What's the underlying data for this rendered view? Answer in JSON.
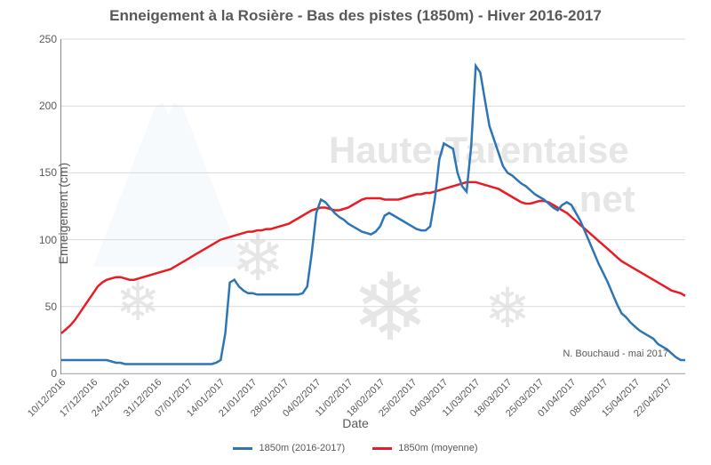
{
  "chart": {
    "type": "line",
    "title": "Enneigement à la Rosière - Bas des pistes (1850m) - Hiver 2016-2017",
    "title_fontsize": 17,
    "title_color": "#595959",
    "xlabel": "Date",
    "ylabel": "Enneigement (cm)",
    "label_fontsize": 14,
    "tick_fontsize": 12,
    "background_color": "#ffffff",
    "grid_color": "#d9d9d9",
    "axis_color": "#888888",
    "ylim": [
      0,
      250
    ],
    "ytick_step": 50,
    "yticks": [
      0,
      50,
      100,
      150,
      200,
      250
    ],
    "xticks": [
      "10/12/2016",
      "17/12/2016",
      "24/12/2016",
      "31/12/2016",
      "07/01/2017",
      "14/01/2017",
      "21/01/2017",
      "28/01/2017",
      "04/02/2017",
      "11/02/2017",
      "18/02/2017",
      "25/02/2017",
      "04/03/2017",
      "11/03/2017",
      "18/03/2017",
      "25/03/2017",
      "01/04/2017",
      "08/04/2017",
      "15/04/2017",
      "22/04/2017"
    ],
    "xtick_rotation": -45,
    "line_width": 2.5,
    "series": [
      {
        "name": "1850m (2016-2017)",
        "color": "#2e75b6",
        "t": [
          0,
          1,
          2,
          3,
          4,
          5,
          6,
          7,
          8,
          9,
          10,
          11,
          12,
          13,
          14,
          15,
          16,
          17,
          18,
          19,
          20,
          21,
          22,
          23,
          24,
          25,
          26,
          27,
          28,
          29,
          30,
          31,
          32,
          33,
          34,
          35,
          36,
          37,
          38,
          39,
          40,
          41,
          42,
          43,
          44,
          45,
          46,
          47,
          48,
          49,
          50,
          51,
          52,
          53,
          54,
          55,
          56,
          57,
          58,
          59,
          60,
          61,
          62,
          63,
          64,
          65,
          66,
          67,
          68,
          69,
          70,
          71,
          72,
          73,
          74,
          75,
          76,
          77,
          78,
          79,
          80,
          81,
          82,
          83,
          84,
          85,
          86,
          87,
          88,
          89,
          90,
          91,
          92,
          93,
          94,
          95,
          96,
          97,
          98,
          99,
          100,
          101,
          102,
          103,
          104,
          105,
          106,
          107,
          108,
          109,
          110,
          111,
          112,
          113,
          114,
          115,
          116,
          117,
          118,
          119,
          120,
          121,
          122,
          123,
          124,
          125,
          126,
          127,
          128,
          129,
          130,
          131,
          132,
          133,
          134,
          135,
          136,
          137
        ],
        "y": [
          10,
          10,
          10,
          10,
          10,
          10,
          10,
          10,
          10,
          10,
          10,
          9,
          8,
          8,
          7,
          7,
          7,
          7,
          7,
          7,
          7,
          7,
          7,
          7,
          7,
          7,
          7,
          7,
          7,
          7,
          7,
          7,
          7,
          7,
          8,
          10,
          30,
          68,
          70,
          65,
          62,
          60,
          60,
          59,
          59,
          59,
          59,
          59,
          59,
          59,
          59,
          59,
          59,
          60,
          65,
          90,
          120,
          130,
          128,
          124,
          120,
          117,
          115,
          112,
          110,
          108,
          106,
          105,
          104,
          106,
          110,
          118,
          120,
          118,
          116,
          114,
          112,
          110,
          108,
          107,
          107,
          110,
          130,
          160,
          172,
          170,
          168,
          150,
          140,
          136,
          170,
          230,
          225,
          205,
          185,
          175,
          165,
          155,
          150,
          148,
          145,
          142,
          140,
          137,
          134,
          132,
          130,
          127,
          124,
          122,
          126,
          128,
          126,
          120,
          114,
          106,
          98,
          90,
          82,
          75,
          68,
          60,
          52,
          45,
          42,
          38,
          35,
          32,
          30,
          28,
          26,
          22,
          20,
          18,
          15,
          12,
          10,
          10
        ]
      },
      {
        "name": "1850m (moyenne)",
        "color": "#e81c23",
        "t": [
          0,
          1,
          2,
          3,
          4,
          5,
          6,
          7,
          8,
          9,
          10,
          11,
          12,
          13,
          14,
          15,
          16,
          17,
          18,
          19,
          20,
          21,
          22,
          23,
          24,
          25,
          26,
          27,
          28,
          29,
          30,
          31,
          32,
          33,
          34,
          35,
          36,
          37,
          38,
          39,
          40,
          41,
          42,
          43,
          44,
          45,
          46,
          47,
          48,
          49,
          50,
          51,
          52,
          53,
          54,
          55,
          56,
          57,
          58,
          59,
          60,
          61,
          62,
          63,
          64,
          65,
          66,
          67,
          68,
          69,
          70,
          71,
          72,
          73,
          74,
          75,
          76,
          77,
          78,
          79,
          80,
          81,
          82,
          83,
          84,
          85,
          86,
          87,
          88,
          89,
          90,
          91,
          92,
          93,
          94,
          95,
          96,
          97,
          98,
          99,
          100,
          101,
          102,
          103,
          104,
          105,
          106,
          107,
          108,
          109,
          110,
          111,
          112,
          113,
          114,
          115,
          116,
          117,
          118,
          119,
          120,
          121,
          122,
          123,
          124,
          125,
          126,
          127,
          128,
          129,
          130,
          131,
          132,
          133,
          134,
          135,
          136,
          137
        ],
        "y": [
          30,
          33,
          36,
          40,
          45,
          50,
          55,
          60,
          65,
          68,
          70,
          71,
          72,
          72,
          71,
          70,
          70,
          71,
          72,
          73,
          74,
          75,
          76,
          77,
          78,
          80,
          82,
          84,
          86,
          88,
          90,
          92,
          94,
          96,
          98,
          100,
          101,
          102,
          103,
          104,
          105,
          106,
          106,
          107,
          107,
          108,
          108,
          109,
          110,
          111,
          112,
          114,
          116,
          118,
          120,
          122,
          123,
          124,
          124,
          123,
          122,
          122,
          123,
          124,
          126,
          128,
          130,
          131,
          131,
          131,
          131,
          130,
          130,
          130,
          130,
          131,
          132,
          133,
          134,
          134,
          135,
          135,
          136,
          137,
          138,
          139,
          140,
          141,
          142,
          143,
          143,
          143,
          142,
          141,
          140,
          139,
          138,
          136,
          134,
          132,
          130,
          128,
          127,
          127,
          128,
          129,
          129,
          128,
          126,
          124,
          122,
          120,
          117,
          114,
          111,
          108,
          105,
          102,
          99,
          96,
          93,
          90,
          87,
          84,
          82,
          80,
          78,
          76,
          74,
          72,
          70,
          68,
          66,
          64,
          62,
          61,
          60,
          58
        ]
      }
    ],
    "legend": {
      "position": "bottom",
      "fontsize": 11,
      "items": [
        {
          "label": "1850m (2016-2017)",
          "color": "#2e75b6"
        },
        {
          "label": "1850m (moyenne)",
          "color": "#e81c23"
        }
      ]
    },
    "attribution": "N. Bouchaud - mai 2017",
    "watermark": {
      "text1": "Haute-Tarentaise",
      "text2": ".net",
      "color": "#e6e6e6",
      "mountain_color": "#c6d9f1",
      "snowflake_color": "#dddddd"
    }
  }
}
